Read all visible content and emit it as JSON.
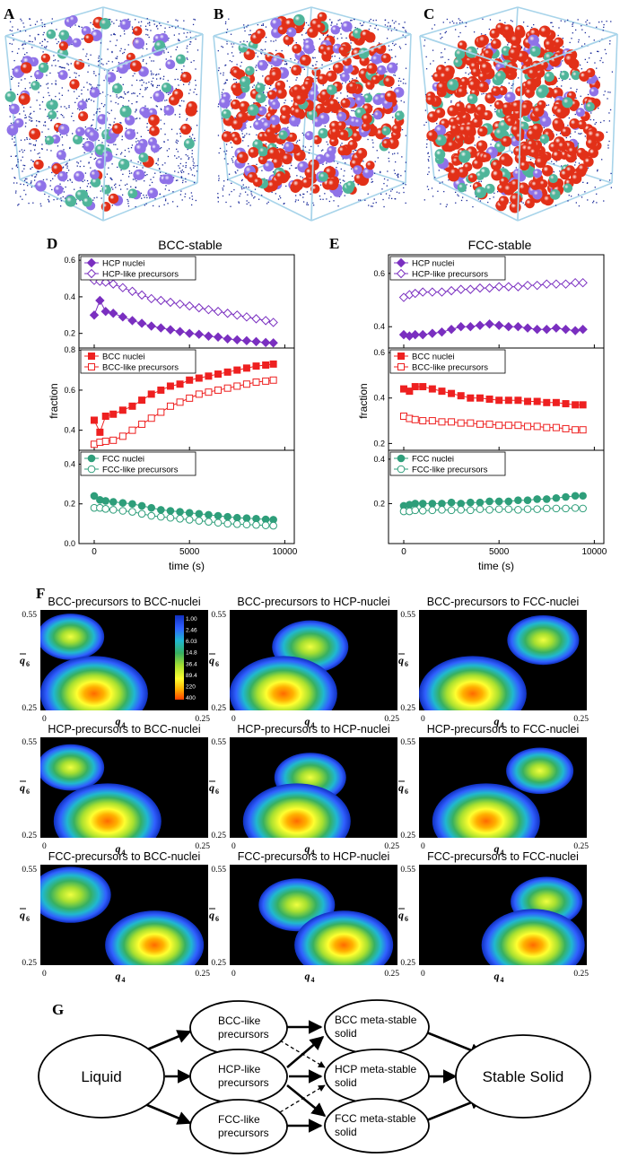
{
  "panels": {
    "a": "A",
    "b": "B",
    "c": "C",
    "d": "D",
    "e": "E",
    "f": "F",
    "g": "G"
  },
  "colors": {
    "hcp": "#7a2fc0",
    "bcc": "#ee2020",
    "fcc": "#2e9e7a",
    "box": "#a8d4ea",
    "hcp_sphere": "#8f72e8",
    "bcc_sphere": "#e23018",
    "fcc_sphere": "#4fb59a",
    "dots": "#1a2a9a"
  },
  "chart_data": [
    {
      "type": "line",
      "panel": "D",
      "title": "BCC-stable",
      "xlabel": "time (s)",
      "ylabel": "fraction",
      "xlim": [
        -800,
        10500
      ],
      "xticks": [
        "0",
        "5000",
        "10000"
      ],
      "subplots": [
        {
          "ylim": [
            0.12,
            0.63
          ],
          "yticks": [
            "0.2",
            "0.4",
            "0.6"
          ],
          "legend": [
            "HCP nuclei",
            "HCP-like precursors"
          ],
          "series": [
            {
              "name": "HCP nuclei",
              "x": [
                0,
                300,
                600,
                1000,
                1500,
                2000,
                2500,
                3000,
                3500,
                4000,
                4500,
                5000,
                5500,
                6000,
                6500,
                7000,
                7500,
                8000,
                8500,
                9000,
                9400
              ],
              "values": [
                0.3,
                0.38,
                0.32,
                0.31,
                0.29,
                0.27,
                0.255,
                0.24,
                0.23,
                0.22,
                0.21,
                0.2,
                0.195,
                0.185,
                0.18,
                0.17,
                0.165,
                0.16,
                0.155,
                0.15,
                0.148
              ]
            },
            {
              "name": "HCP-like precursors",
              "x": [
                0,
                300,
                600,
                1000,
                1500,
                2000,
                2500,
                3000,
                3500,
                4000,
                4500,
                5000,
                5500,
                6000,
                6500,
                7000,
                7500,
                8000,
                8500,
                9000,
                9400
              ],
              "values": [
                0.49,
                0.485,
                0.48,
                0.47,
                0.45,
                0.43,
                0.41,
                0.39,
                0.38,
                0.37,
                0.36,
                0.35,
                0.34,
                0.33,
                0.32,
                0.31,
                0.3,
                0.29,
                0.28,
                0.27,
                0.26
              ]
            }
          ]
        },
        {
          "ylim": [
            0.3,
            0.81
          ],
          "yticks": [
            "0.4",
            "0.6",
            "0.8"
          ],
          "legend": [
            "BCC nuclei",
            "BCC-like precursors"
          ],
          "series": [
            {
              "name": "BCC nuclei",
              "x": [
                0,
                300,
                600,
                1000,
                1500,
                2000,
                2500,
                3000,
                3500,
                4000,
                4500,
                5000,
                5500,
                6000,
                6500,
                7000,
                7500,
                8000,
                8500,
                9000,
                9400
              ],
              "values": [
                0.45,
                0.39,
                0.47,
                0.48,
                0.5,
                0.52,
                0.55,
                0.58,
                0.6,
                0.62,
                0.63,
                0.65,
                0.66,
                0.67,
                0.68,
                0.69,
                0.7,
                0.71,
                0.72,
                0.725,
                0.73
              ]
            },
            {
              "name": "BCC-like precursors",
              "x": [
                0,
                300,
                600,
                1000,
                1500,
                2000,
                2500,
                3000,
                3500,
                4000,
                4500,
                5000,
                5500,
                6000,
                6500,
                7000,
                7500,
                8000,
                8500,
                9000,
                9400
              ],
              "values": [
                0.33,
                0.34,
                0.345,
                0.35,
                0.37,
                0.4,
                0.43,
                0.46,
                0.49,
                0.52,
                0.54,
                0.56,
                0.58,
                0.59,
                0.6,
                0.61,
                0.62,
                0.63,
                0.64,
                0.645,
                0.65
              ]
            }
          ]
        },
        {
          "ylim": [
            0.0,
            0.47
          ],
          "yticks": [
            "0.0",
            "0.2",
            "0.4"
          ],
          "legend": [
            "FCC nuclei",
            "FCC-like precursors"
          ],
          "series": [
            {
              "name": "FCC nuclei",
              "x": [
                0,
                300,
                600,
                1000,
                1500,
                2000,
                2500,
                3000,
                3500,
                4000,
                4500,
                5000,
                5500,
                6000,
                6500,
                7000,
                7500,
                8000,
                8500,
                9000,
                9400
              ],
              "values": [
                0.24,
                0.22,
                0.215,
                0.21,
                0.205,
                0.2,
                0.19,
                0.18,
                0.17,
                0.165,
                0.16,
                0.155,
                0.15,
                0.145,
                0.14,
                0.135,
                0.13,
                0.128,
                0.125,
                0.122,
                0.12
              ]
            },
            {
              "name": "FCC-like precursors",
              "x": [
                0,
                300,
                600,
                1000,
                1500,
                2000,
                2500,
                3000,
                3500,
                4000,
                4500,
                5000,
                5500,
                6000,
                6500,
                7000,
                7500,
                8000,
                8500,
                9000,
                9400
              ],
              "values": [
                0.18,
                0.18,
                0.175,
                0.17,
                0.165,
                0.16,
                0.15,
                0.14,
                0.135,
                0.13,
                0.125,
                0.12,
                0.115,
                0.11,
                0.105,
                0.1,
                0.098,
                0.096,
                0.094,
                0.092,
                0.09
              ]
            }
          ]
        }
      ]
    },
    {
      "type": "line",
      "panel": "E",
      "title": "FCC-stable",
      "xlabel": "time (s)",
      "ylabel": "fraction",
      "xlim": [
        -800,
        10500
      ],
      "xticks": [
        "0",
        "5000",
        "10000"
      ],
      "subplots": [
        {
          "ylim": [
            0.32,
            0.67
          ],
          "yticks": [
            "0.4",
            "0.6"
          ],
          "legend": [
            "HCP nuclei",
            "HCP-like precursors"
          ],
          "series": [
            {
              "name": "HCP nuclei",
              "x": [
                0,
                300,
                600,
                1000,
                1500,
                2000,
                2500,
                3000,
                3500,
                4000,
                4500,
                5000,
                5500,
                6000,
                6500,
                7000,
                7500,
                8000,
                8500,
                9000,
                9400
              ],
              "values": [
                0.37,
                0.365,
                0.37,
                0.37,
                0.375,
                0.38,
                0.39,
                0.4,
                0.4,
                0.405,
                0.41,
                0.405,
                0.4,
                0.4,
                0.395,
                0.39,
                0.39,
                0.395,
                0.39,
                0.385,
                0.39
              ]
            },
            {
              "name": "HCP-like precursors",
              "x": [
                0,
                300,
                600,
                1000,
                1500,
                2000,
                2500,
                3000,
                3500,
                4000,
                4500,
                5000,
                5500,
                6000,
                6500,
                7000,
                7500,
                8000,
                8500,
                9000,
                9400
              ],
              "values": [
                0.51,
                0.52,
                0.525,
                0.53,
                0.53,
                0.53,
                0.535,
                0.54,
                0.54,
                0.545,
                0.545,
                0.55,
                0.55,
                0.55,
                0.555,
                0.555,
                0.56,
                0.56,
                0.56,
                0.565,
                0.565
              ]
            }
          ]
        },
        {
          "ylim": [
            0.17,
            0.62
          ],
          "yticks": [
            "0.2",
            "0.4",
            "0.6"
          ],
          "legend": [
            "BCC nuclei",
            "BCC-like precursors"
          ],
          "series": [
            {
              "name": "BCC nuclei",
              "x": [
                0,
                300,
                600,
                1000,
                1500,
                2000,
                2500,
                3000,
                3500,
                4000,
                4500,
                5000,
                5500,
                6000,
                6500,
                7000,
                7500,
                8000,
                8500,
                9000,
                9400
              ],
              "values": [
                0.44,
                0.43,
                0.45,
                0.45,
                0.44,
                0.43,
                0.42,
                0.41,
                0.4,
                0.4,
                0.395,
                0.39,
                0.39,
                0.39,
                0.385,
                0.385,
                0.38,
                0.38,
                0.375,
                0.37,
                0.37
              ]
            },
            {
              "name": "BCC-like precursors",
              "x": [
                0,
                300,
                600,
                1000,
                1500,
                2000,
                2500,
                3000,
                3500,
                4000,
                4500,
                5000,
                5500,
                6000,
                6500,
                7000,
                7500,
                8000,
                8500,
                9000,
                9400
              ],
              "values": [
                0.32,
                0.31,
                0.305,
                0.3,
                0.3,
                0.295,
                0.295,
                0.29,
                0.29,
                0.285,
                0.285,
                0.28,
                0.28,
                0.28,
                0.275,
                0.275,
                0.27,
                0.27,
                0.265,
                0.26,
                0.26
              ]
            }
          ]
        },
        {
          "ylim": [
            0.02,
            0.44
          ],
          "yticks": [
            "0.2",
            "0.4"
          ],
          "legend": [
            "FCC nuclei",
            "FCC-like precursors"
          ],
          "series": [
            {
              "name": "FCC nuclei",
              "x": [
                0,
                300,
                600,
                1000,
                1500,
                2000,
                2500,
                3000,
                3500,
                4000,
                4500,
                5000,
                5500,
                6000,
                6500,
                7000,
                7500,
                8000,
                8500,
                9000,
                9400
              ],
              "values": [
                0.19,
                0.195,
                0.2,
                0.2,
                0.2,
                0.2,
                0.205,
                0.2,
                0.205,
                0.205,
                0.21,
                0.21,
                0.21,
                0.215,
                0.215,
                0.22,
                0.22,
                0.225,
                0.23,
                0.235,
                0.235
              ]
            },
            {
              "name": "FCC-like precursors",
              "x": [
                0,
                300,
                600,
                1000,
                1500,
                2000,
                2500,
                3000,
                3500,
                4000,
                4500,
                5000,
                5500,
                6000,
                6500,
                7000,
                7500,
                8000,
                8500,
                9000,
                9400
              ],
              "values": [
                0.165,
                0.165,
                0.17,
                0.168,
                0.17,
                0.172,
                0.17,
                0.172,
                0.17,
                0.175,
                0.172,
                0.175,
                0.175,
                0.172,
                0.175,
                0.175,
                0.178,
                0.178,
                0.178,
                0.18,
                0.178
              ]
            }
          ]
        }
      ]
    },
    {
      "type": "heatmap",
      "panel": "F",
      "xlabel": "q",
      "xlabel_sub": "4",
      "ylabel": "q",
      "ylabel_sub": "6",
      "xrange": [
        0,
        0.25
      ],
      "yrange": [
        0.25,
        0.55
      ],
      "xticks": [
        "0",
        "0.25"
      ],
      "yticks": [
        "0.55",
        "0.25"
      ],
      "colorbar": [
        "1.00",
        "2.46",
        "6.03",
        "14.8",
        "36.4",
        "89.4",
        "220",
        "400"
      ],
      "titles": [
        "BCC-precursors to BCC-nuclei",
        "BCC-precursors to HCP-nuclei",
        "BCC-precursors to FCC-nuclei",
        "HCP-precursors to BCC-nuclei",
        "HCP-precursors to HCP-nuclei",
        "HCP-precursors to FCC-nuclei",
        "FCC-precursors to BCC-nuclei",
        "FCC-precursors to HCP-nuclei",
        "FCC-precursors to FCC-nuclei"
      ],
      "blobs": [
        [
          {
            "x": 0.045,
            "y": 0.47,
            "w": 0.55
          },
          {
            "x": 0.08,
            "y": 0.3,
            "w": 1.0
          }
        ],
        [
          {
            "x": 0.12,
            "y": 0.44,
            "w": 0.65
          },
          {
            "x": 0.08,
            "y": 0.3,
            "w": 1.0
          }
        ],
        [
          {
            "x": 0.185,
            "y": 0.46,
            "w": 0.6
          },
          {
            "x": 0.08,
            "y": 0.3,
            "w": 1.0
          }
        ],
        [
          {
            "x": 0.045,
            "y": 0.46,
            "w": 0.55
          },
          {
            "x": 0.1,
            "y": 0.3,
            "w": 1.0
          }
        ],
        [
          {
            "x": 0.12,
            "y": 0.43,
            "w": 0.6
          },
          {
            "x": 0.1,
            "y": 0.3,
            "w": 1.0
          }
        ],
        [
          {
            "x": 0.18,
            "y": 0.45,
            "w": 0.55
          },
          {
            "x": 0.1,
            "y": 0.3,
            "w": 1.0
          }
        ],
        [
          {
            "x": 0.045,
            "y": 0.46,
            "w": 0.7
          },
          {
            "x": 0.17,
            "y": 0.31,
            "w": 0.9
          }
        ],
        [
          {
            "x": 0.1,
            "y": 0.43,
            "w": 0.65
          },
          {
            "x": 0.17,
            "y": 0.31,
            "w": 0.9
          }
        ],
        [
          {
            "x": 0.19,
            "y": 0.44,
            "w": 0.6
          },
          {
            "x": 0.17,
            "y": 0.31,
            "w": 0.95
          }
        ]
      ]
    }
  ],
  "diagram": {
    "nodes": {
      "liquid": "Liquid",
      "bcc_pre_1": "BCC-like",
      "bcc_pre_2": "precursors",
      "hcp_pre_1": "HCP-like",
      "hcp_pre_2": "precursors",
      "fcc_pre_1": "FCC-like",
      "fcc_pre_2": "precursors",
      "bcc_meta_1": "BCC meta-stable",
      "bcc_meta_2": "solid",
      "hcp_meta_1": "HCP meta-stable",
      "hcp_meta_2": "solid",
      "fcc_meta_1": "FCC meta-stable",
      "fcc_meta_2": "solid",
      "stable": "Stable Solid"
    }
  }
}
